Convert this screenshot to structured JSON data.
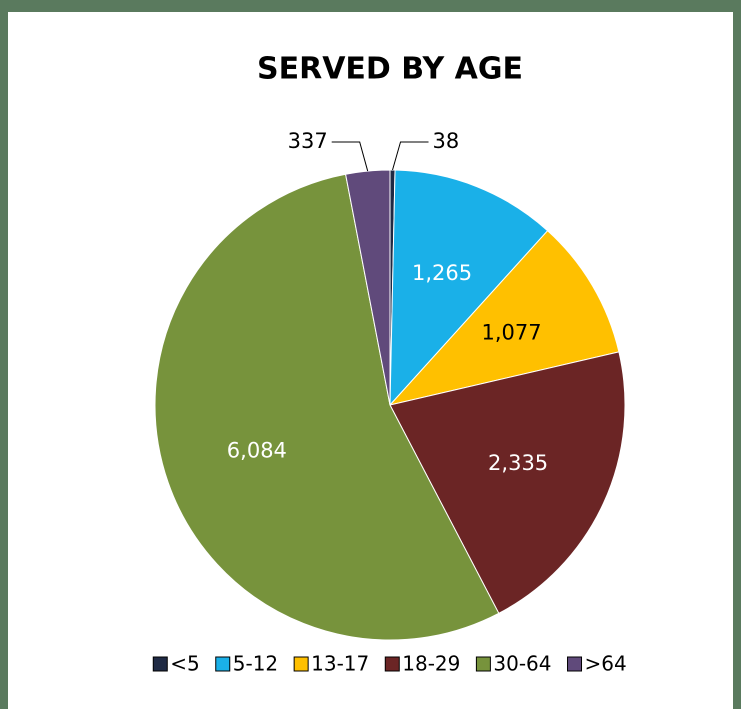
{
  "chart_data": {
    "type": "pie",
    "title": "SERVED BY AGE",
    "categories": [
      "<5",
      "5-12",
      "13-17",
      "18-29",
      "30-64",
      ">64"
    ],
    "values": [
      38,
      1265,
      1077,
      2335,
      6084,
      337
    ],
    "value_labels": [
      "38",
      "1,265",
      "1,077",
      "2,335",
      "6,084",
      "337"
    ],
    "colors": [
      "#1f2a44",
      "#1ab0e8",
      "#ffc000",
      "#6b2525",
      "#77933c",
      "#604a7b"
    ],
    "legend": "bottom"
  }
}
